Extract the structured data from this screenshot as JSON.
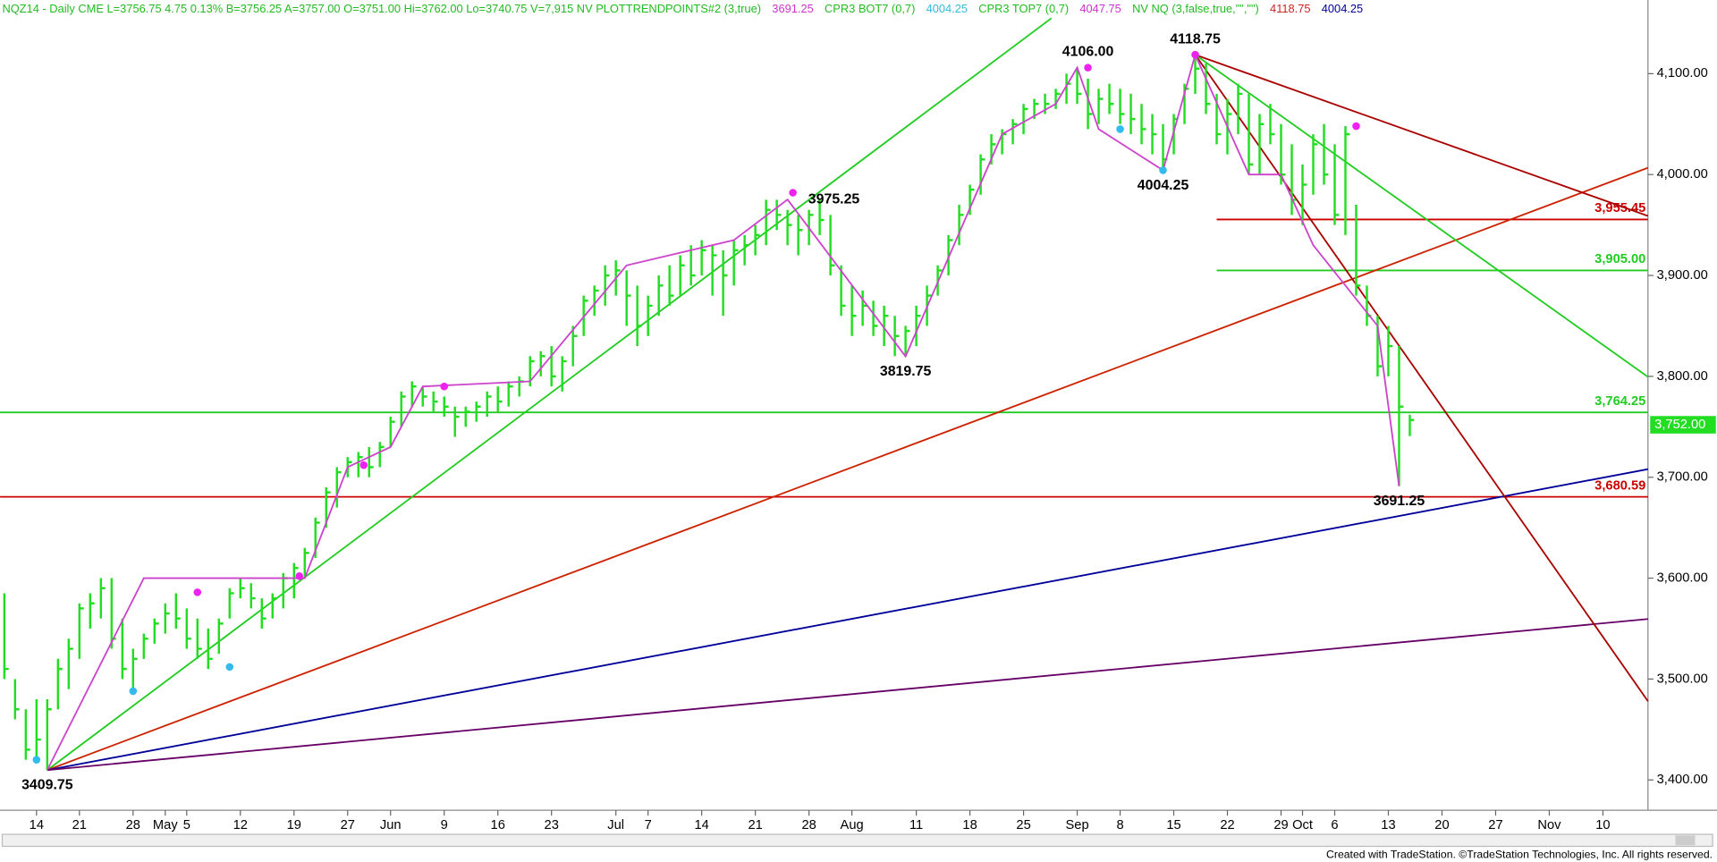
{
  "chart_data": {
    "type": "ohlc",
    "header": [
      {
        "text": "NQZ14 - Daily  CME  L=3756.75  4.75  0.13%  B=3756.25  A=3757.00  O=3751.00  Hi=3762.00  Lo=3740.75  V=7,915  NV  PLOTTRENDPOINTS#2 (3,true)",
        "color": "#22bb22"
      },
      {
        "text": "3691.25",
        "color": "#cc33cc"
      },
      {
        "text": "CPR3 BOT7 (0,7)",
        "color": "#22bb22"
      },
      {
        "text": "4004.25",
        "color": "#33bbdd"
      },
      {
        "text": "CPR3 TOP7 (0,7)",
        "color": "#22bb22"
      },
      {
        "text": "4047.75",
        "color": "#cc33cc"
      },
      {
        "text": "NV NQ (3,false,true,\"\",\"\")",
        "color": "#22bb22"
      },
      {
        "text": "4118.75",
        "color": "#cc2222"
      },
      {
        "text": "4004.25",
        "color": "#000099"
      }
    ],
    "footer": "Created with TradeStation. ©TradeStation Technologies, Inc. All rights reserved.",
    "color": "#22dd22",
    "xlim": [
      -3.4,
      150.2
    ],
    "ylim": [
      3370,
      4173
    ],
    "xticks": [
      {
        "value": 0,
        "label": "14"
      },
      {
        "value": 4,
        "label": "21"
      },
      {
        "value": 9,
        "label": "28"
      },
      {
        "value": 12,
        "label": "May"
      },
      {
        "value": 14,
        "label": "5"
      },
      {
        "value": 19,
        "label": "12"
      },
      {
        "value": 24,
        "label": "19"
      },
      {
        "value": 29,
        "label": "27"
      },
      {
        "value": 33,
        "label": "Jun"
      },
      {
        "value": 38,
        "label": "9"
      },
      {
        "value": 43,
        "label": "16"
      },
      {
        "value": 48,
        "label": "23"
      },
      {
        "value": 54,
        "label": "Jul"
      },
      {
        "value": 57,
        "label": "7"
      },
      {
        "value": 62,
        "label": "14"
      },
      {
        "value": 67,
        "label": "21"
      },
      {
        "value": 72,
        "label": "28"
      },
      {
        "value": 76,
        "label": "Aug"
      },
      {
        "value": 82,
        "label": "11"
      },
      {
        "value": 87,
        "label": "18"
      },
      {
        "value": 92,
        "label": "25"
      },
      {
        "value": 97,
        "label": "Sep"
      },
      {
        "value": 101,
        "label": "8"
      },
      {
        "value": 106,
        "label": "15"
      },
      {
        "value": 111,
        "label": "22"
      },
      {
        "value": 116,
        "label": "29"
      },
      {
        "value": 118,
        "label": "Oct"
      },
      {
        "value": 121,
        "label": "6"
      },
      {
        "value": 126,
        "label": "13"
      },
      {
        "value": 131,
        "label": "20"
      },
      {
        "value": 136,
        "label": "27"
      },
      {
        "value": 141,
        "label": "Nov"
      },
      {
        "value": 146,
        "label": "10"
      }
    ],
    "yticks": [
      {
        "value": 3400,
        "label": "3,400.00"
      },
      {
        "value": 3500,
        "label": "3,500.00"
      },
      {
        "value": 3600,
        "label": "3,600.00"
      },
      {
        "value": 3700,
        "label": "3,700.00"
      },
      {
        "value": 3800,
        "label": "3,800.00"
      },
      {
        "value": 3900,
        "label": "3,900.00"
      },
      {
        "value": 4000,
        "label": "4,000.00"
      },
      {
        "value": 4100,
        "label": "4,100.00"
      }
    ],
    "x": [
      -3,
      -2,
      -1,
      0,
      1,
      2,
      3,
      4,
      5,
      6,
      7,
      8,
      9,
      10,
      11,
      12,
      13,
      14,
      15,
      16,
      17,
      18,
      19,
      20,
      21,
      22,
      23,
      24,
      25,
      26,
      27,
      28,
      29,
      30,
      31,
      32,
      33,
      34,
      35,
      36,
      37,
      38,
      39,
      40,
      41,
      42,
      43,
      44,
      45,
      46,
      47,
      48,
      49,
      50,
      51,
      52,
      53,
      54,
      55,
      56,
      57,
      58,
      59,
      60,
      61,
      62,
      63,
      64,
      65,
      66,
      67,
      68,
      69,
      70,
      71,
      72,
      73,
      74,
      75,
      76,
      77,
      78,
      79,
      80,
      81,
      82,
      83,
      84,
      85,
      86,
      87,
      88,
      89,
      90,
      91,
      92,
      93,
      94,
      95,
      96,
      97,
      98,
      99,
      100,
      101,
      102,
      103,
      104,
      105,
      106,
      107,
      108,
      109,
      110,
      111,
      112,
      113,
      114,
      115,
      116,
      117,
      118,
      119,
      120,
      121,
      122,
      123,
      124,
      125,
      126,
      127,
      128
    ],
    "high": [
      3585,
      3500,
      3470,
      3480,
      3480,
      3520,
      3540,
      3575,
      3585,
      3600,
      3600,
      3560,
      3530,
      3545,
      3560,
      3575,
      3585,
      3570,
      3560,
      3550,
      3560,
      3590,
      3600,
      3595,
      3580,
      3585,
      3605,
      3615,
      3630,
      3660,
      3690,
      3710,
      3720,
      3725,
      3730,
      3735,
      3760,
      3785,
      3795,
      3790,
      3785,
      3780,
      3770,
      3770,
      3775,
      3785,
      3790,
      3795,
      3800,
      3820,
      3825,
      3830,
      3820,
      3850,
      3880,
      3890,
      3910,
      3915,
      3905,
      3890,
      3880,
      3900,
      3910,
      3920,
      3930,
      3935,
      3930,
      3925,
      3935,
      3940,
      3950,
      3975,
      3975,
      3965,
      3960,
      3965,
      3975,
      3960,
      3910,
      3890,
      3885,
      3875,
      3870,
      3860,
      3850,
      3870,
      3890,
      3910,
      3940,
      3970,
      3990,
      4020,
      4040,
      4045,
      4055,
      4070,
      4075,
      4080,
      4085,
      4100,
      4106,
      4095,
      4085,
      4090,
      4085,
      4080,
      4070,
      4060,
      4050,
      4060,
      4090,
      4118.75,
      4110,
      4080,
      4075,
      4090,
      4080,
      4060,
      4070,
      4050,
      4030,
      4010,
      4040,
      4050,
      4030,
      4048,
      3970,
      3890,
      3860,
      3850,
      3830,
      3762
    ],
    "low": [
      3500,
      3460,
      3420,
      3420,
      3409.75,
      3470,
      3490,
      3520,
      3550,
      3560,
      3530,
      3500,
      3485,
      3520,
      3535,
      3545,
      3550,
      3530,
      3520,
      3510,
      3525,
      3560,
      3580,
      3570,
      3550,
      3560,
      3570,
      3580,
      3600,
      3620,
      3650,
      3670,
      3700,
      3700,
      3700,
      3710,
      3730,
      3750,
      3770,
      3770,
      3765,
      3760,
      3740,
      3750,
      3755,
      3760,
      3765,
      3770,
      3780,
      3790,
      3800,
      3790,
      3785,
      3810,
      3840,
      3860,
      3870,
      3880,
      3850,
      3830,
      3840,
      3860,
      3870,
      3880,
      3890,
      3900,
      3880,
      3860,
      3890,
      3910,
      3920,
      3930,
      3945,
      3930,
      3920,
      3930,
      3940,
      3900,
      3860,
      3840,
      3850,
      3840,
      3830,
      3820,
      3819.75,
      3830,
      3850,
      3880,
      3900,
      3930,
      3960,
      3980,
      4010,
      4020,
      4030,
      4040,
      4055,
      4060,
      4065,
      4070,
      4070,
      4045,
      4050,
      4060,
      4050,
      4040,
      4030,
      4020,
      4004.25,
      4020,
      4050,
      4080,
      4060,
      4030,
      4020,
      4040,
      4000,
      4000,
      4030,
      3990,
      3960,
      3950,
      3980,
      3990,
      3950,
      3940,
      3880,
      3850,
      3800,
      3800,
      3691.25,
      3740.75
    ],
    "close": [
      3510,
      3470,
      3430,
      3440,
      3470,
      3510,
      3530,
      3570,
      3575,
      3590,
      3540,
      3510,
      3520,
      3540,
      3555,
      3565,
      3560,
      3540,
      3530,
      3520,
      3555,
      3585,
      3590,
      3580,
      3560,
      3580,
      3600,
      3610,
      3625,
      3655,
      3685,
      3705,
      3715,
      3720,
      3710,
      3730,
      3755,
      3780,
      3790,
      3780,
      3775,
      3770,
      3760,
      3765,
      3770,
      3780,
      3775,
      3790,
      3795,
      3815,
      3820,
      3800,
      3815,
      3840,
      3875,
      3885,
      3900,
      3905,
      3880,
      3850,
      3870,
      3890,
      3880,
      3910,
      3900,
      3925,
      3920,
      3900,
      3925,
      3930,
      3940,
      3965,
      3960,
      3950,
      3945,
      3960,
      3955,
      3910,
      3870,
      3860,
      3870,
      3850,
      3860,
      3840,
      3845,
      3860,
      3880,
      3905,
      3935,
      3960,
      3985,
      4015,
      4030,
      4040,
      4050,
      4065,
      4070,
      4070,
      4080,
      4090,
      4080,
      4060,
      4075,
      4070,
      4060,
      4055,
      4045,
      4040,
      4015,
      4055,
      4085,
      4105,
      4070,
      4040,
      4060,
      4080,
      4010,
      4050,
      4040,
      4000,
      3975,
      3990,
      4030,
      4000,
      3960,
      4040,
      3890,
      3860,
      3810,
      3830,
      3770,
      3756.75
    ],
    "envelope": {
      "color": "#cc44cc",
      "x": [
        1,
        10,
        25,
        29,
        33,
        36,
        46,
        55,
        65,
        70,
        81,
        90,
        95,
        97,
        99,
        105,
        108,
        113,
        116,
        119,
        125,
        127
      ],
      "y": [
        3409.75,
        3600,
        3600,
        3710,
        3730,
        3790,
        3795,
        3910,
        3935,
        3975.25,
        3819.75,
        4040,
        4070,
        4106,
        4045,
        4004.25,
        4118.75,
        4000,
        4000,
        3930,
        3850,
        3691.25
      ]
    },
    "trend_lines": [
      {
        "color": "#22cc22",
        "x": [
          1,
          94.6
        ],
        "y": [
          3409.75,
          4155
        ]
      },
      {
        "color": "#cc2200",
        "x": [
          1,
          150.2
        ],
        "y": [
          3409.75,
          4006.7
        ]
      },
      {
        "color": "#000099",
        "x": [
          1,
          150.2
        ],
        "y": [
          3409.75,
          3708
        ]
      },
      {
        "color": "#660066",
        "x": [
          1,
          150.2
        ],
        "y": [
          3409.75,
          3559.5
        ]
      },
      {
        "color": "#aa0000",
        "x": [
          108,
          150.2
        ],
        "y": [
          4118.75,
          3478
        ]
      },
      {
        "color": "#aa0000",
        "x": [
          108,
          150.2
        ],
        "y": [
          4118.75,
          3959
        ]
      },
      {
        "color": "#22cc22",
        "x": [
          108,
          150.2
        ],
        "y": [
          4118.75,
          3799.4
        ]
      }
    ],
    "levels": [
      {
        "value": 3955.45,
        "label": "3,955.45",
        "color": "#cc0000",
        "from": 110
      },
      {
        "value": 3905,
        "label": "3,905.00",
        "color": "#22cc22",
        "from": 110
      },
      {
        "value": 3764.25,
        "label": "3,764.25",
        "color": "#22cc22"
      },
      {
        "value": 3680.59,
        "label": "3,680.59",
        "color": "#cc0000"
      }
    ],
    "dots": [
      {
        "color": "#ee22ee",
        "x": [
          15,
          24.5,
          30.5,
          38,
          70.5,
          98,
          108,
          123
        ],
        "y": [
          3586,
          3602,
          3712,
          3790,
          3982,
          4106,
          4118.75,
          4048
        ]
      },
      {
        "color": "#33bbee",
        "x": [
          0,
          9,
          18,
          101,
          105
        ],
        "y": [
          3420,
          3488,
          3512,
          4045,
          4004.25
        ]
      }
    ],
    "annotations": [
      {
        "x": 1,
        "value": 3409.75,
        "label": "3409.75",
        "position": "below"
      },
      {
        "x": 70.5,
        "value": 3975.25,
        "label": "3975.25",
        "position": "right"
      },
      {
        "x": 81,
        "value": 3819.75,
        "label": "3819.75",
        "position": "below"
      },
      {
        "x": 98,
        "value": 4106,
        "label": "4106.00",
        "position": "above"
      },
      {
        "x": 105,
        "value": 4004.25,
        "label": "4004.25",
        "position": "below"
      },
      {
        "x": 108,
        "value": 4118.75,
        "label": "4118.75",
        "position": "above"
      },
      {
        "x": 127,
        "value": 3691.25,
        "label": "3691.25",
        "position": "below"
      }
    ],
    "last_price": {
      "value": 3752,
      "label": "3,752.00",
      "color": "#22dd22"
    }
  }
}
